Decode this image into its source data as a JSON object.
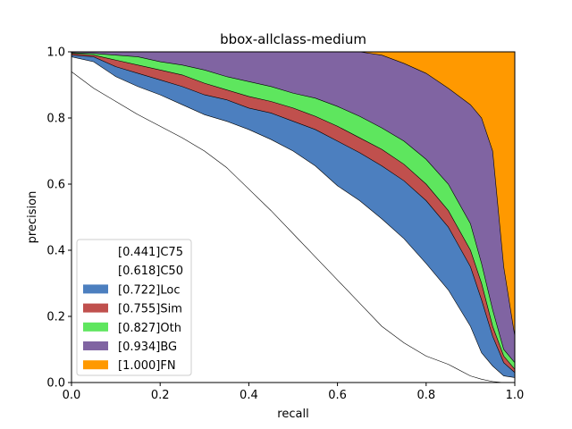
{
  "chart_data": {
    "type": "area",
    "title": "bbox-allclass-medium",
    "xlabel": "recall",
    "ylabel": "precision",
    "xlim": [
      0,
      1
    ],
    "ylim": [
      0,
      1
    ],
    "x_ticks": [
      "0.0",
      "0.2",
      "0.4",
      "0.6",
      "0.8",
      "1.0"
    ],
    "y_ticks": [
      "0.0",
      "0.2",
      "0.4",
      "0.6",
      "0.8",
      "1.0"
    ],
    "grid": false,
    "legend_position": "lower-left",
    "x": [
      0,
      0.05,
      0.1,
      0.15,
      0.2,
      0.25,
      0.3,
      0.35,
      0.4,
      0.45,
      0.5,
      0.55,
      0.6,
      0.65,
      0.7,
      0.75,
      0.8,
      0.85,
      0.9,
      0.925,
      0.95,
      0.975,
      1.0
    ],
    "series": [
      {
        "legend_label": "[0.441]C75",
        "color": "#ffffff",
        "values": [
          0.94,
          0.89,
          0.85,
          0.81,
          0.775,
          0.74,
          0.7,
          0.65,
          0.585,
          0.52,
          0.45,
          0.38,
          0.31,
          0.24,
          0.17,
          0.12,
          0.08,
          0.055,
          0.02,
          0.01,
          0.003,
          0.0,
          0.0
        ]
      },
      {
        "legend_label": "[0.618]C50",
        "color": "#ffffff",
        "values": [
          0.985,
          0.97,
          0.925,
          0.895,
          0.87,
          0.84,
          0.81,
          0.79,
          0.765,
          0.735,
          0.7,
          0.655,
          0.595,
          0.55,
          0.495,
          0.435,
          0.36,
          0.28,
          0.17,
          0.09,
          0.05,
          0.02,
          0.015
        ]
      },
      {
        "legend_label": "[0.722]Loc",
        "color": "#4c7fbf",
        "values": [
          0.99,
          0.985,
          0.955,
          0.935,
          0.915,
          0.895,
          0.87,
          0.855,
          0.83,
          0.815,
          0.79,
          0.765,
          0.73,
          0.695,
          0.655,
          0.61,
          0.55,
          0.47,
          0.35,
          0.25,
          0.14,
          0.06,
          0.03
        ]
      },
      {
        "legend_label": "[0.755]Sim",
        "color": "#c0504d",
        "values": [
          0.995,
          0.99,
          0.975,
          0.96,
          0.945,
          0.93,
          0.905,
          0.885,
          0.865,
          0.85,
          0.83,
          0.805,
          0.775,
          0.74,
          0.705,
          0.66,
          0.6,
          0.52,
          0.4,
          0.3,
          0.17,
          0.08,
          0.04
        ]
      },
      {
        "legend_label": "[0.827]Oth",
        "color": "#5ee65e",
        "values": [
          0.997,
          0.995,
          0.99,
          0.985,
          0.97,
          0.96,
          0.945,
          0.925,
          0.91,
          0.895,
          0.875,
          0.86,
          0.835,
          0.805,
          0.77,
          0.73,
          0.675,
          0.6,
          0.48,
          0.36,
          0.22,
          0.1,
          0.06
        ]
      },
      {
        "legend_label": "[0.934]BG",
        "color": "#8064a2",
        "values": [
          1.0,
          1.0,
          1.0,
          1.0,
          1.0,
          1.0,
          1.0,
          1.0,
          1.0,
          1.0,
          1.0,
          1.0,
          1.0,
          1.0,
          0.99,
          0.965,
          0.935,
          0.89,
          0.84,
          0.8,
          0.7,
          0.35,
          0.14
        ]
      },
      {
        "legend_label": "[1.000]FN",
        "color": "#ff9900",
        "values": [
          1.0,
          1.0,
          1.0,
          1.0,
          1.0,
          1.0,
          1.0,
          1.0,
          1.0,
          1.0,
          1.0,
          1.0,
          1.0,
          1.0,
          1.0,
          1.0,
          1.0,
          1.0,
          1.0,
          1.0,
          1.0,
          1.0,
          1.0
        ]
      }
    ]
  }
}
